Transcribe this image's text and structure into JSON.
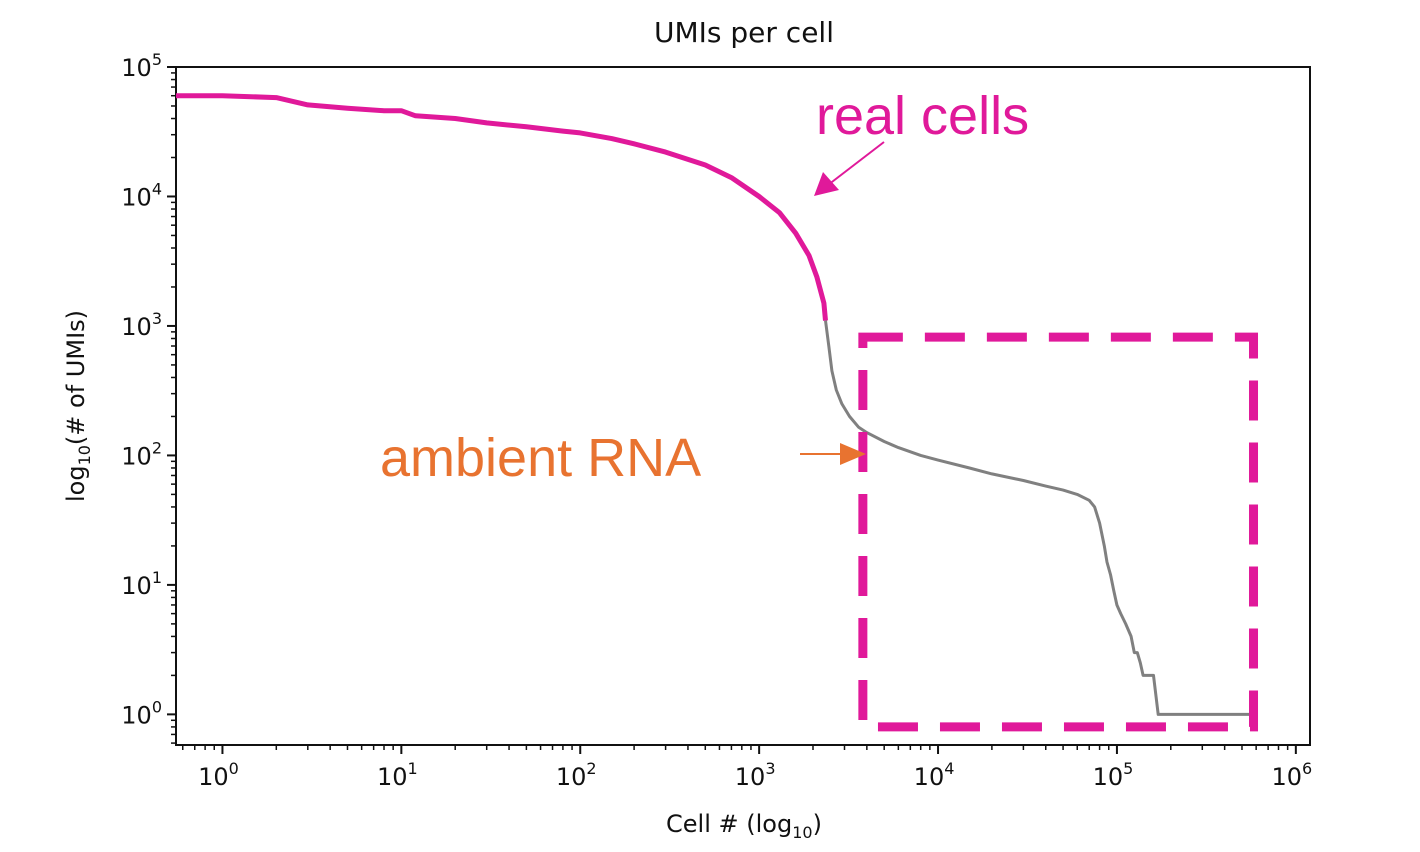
{
  "chart_data": {
    "type": "line",
    "title": "UMIs per cell",
    "xlabel": {
      "prefix": "Cell # (log",
      "sub": "10",
      "suffix": ")"
    },
    "ylabel": {
      "prefix": "log",
      "sub": "10",
      "suffix": "(# of UMIs)"
    },
    "x_scale": "log",
    "y_scale": "log",
    "xlim": [
      0.55,
      1200000
    ],
    "ylim": [
      0.58,
      100000
    ],
    "x_ticks": [
      {
        "base": "10",
        "exp": "0",
        "value": 1
      },
      {
        "base": "10",
        "exp": "1",
        "value": 10
      },
      {
        "base": "10",
        "exp": "2",
        "value": 100
      },
      {
        "base": "10",
        "exp": "3",
        "value": 1000
      },
      {
        "base": "10",
        "exp": "4",
        "value": 10000
      },
      {
        "base": "10",
        "exp": "5",
        "value": 100000
      },
      {
        "base": "10",
        "exp": "6",
        "value": 1000000
      }
    ],
    "y_ticks": [
      {
        "base": "10",
        "exp": "0",
        "value": 1
      },
      {
        "base": "10",
        "exp": "1",
        "value": 10
      },
      {
        "base": "10",
        "exp": "2",
        "value": 100
      },
      {
        "base": "10",
        "exp": "3",
        "value": 1000
      },
      {
        "base": "10",
        "exp": "4",
        "value": 10000
      },
      {
        "base": "10",
        "exp": "5",
        "value": 100000
      }
    ],
    "grid": false,
    "series": [
      {
        "color": "#e0199a",
        "x": [
          0.55,
          1,
          2,
          3,
          5,
          8,
          10,
          12,
          20,
          30,
          50,
          80,
          100,
          150,
          200,
          300,
          500,
          700,
          1000,
          1300,
          1600,
          1900,
          2100,
          2300,
          2350
        ],
        "y": [
          60000,
          60000,
          58000,
          51000,
          48000,
          46000,
          46000,
          42000,
          40000,
          37000,
          34500,
          32000,
          31000,
          28000,
          25500,
          22000,
          17500,
          14000,
          10000,
          7500,
          5200,
          3500,
          2400,
          1500,
          1100
        ]
      },
      {
        "color": "#808080",
        "x": [
          2350,
          2450,
          2550,
          2700,
          2900,
          3200,
          3600,
          4000,
          5000,
          6000,
          8000,
          10000,
          15000,
          20000,
          30000,
          40000,
          50000,
          60000,
          70000,
          75000,
          80000,
          85000,
          88000,
          92000,
          96000,
          100000,
          105000,
          112000,
          120000,
          125000,
          130000,
          135000,
          140000,
          150000,
          160000,
          170000,
          200000,
          300000,
          400000,
          560000
        ],
        "y": [
          1100,
          700,
          450,
          320,
          250,
          200,
          165,
          150,
          128,
          115,
          100,
          92,
          80,
          72,
          64,
          58,
          54,
          50,
          45,
          40,
          30,
          20,
          15,
          12,
          9,
          7,
          6,
          5,
          4,
          3,
          3,
          2.5,
          2,
          2,
          2,
          1,
          1,
          1,
          1,
          1
        ]
      }
    ],
    "annotations": [
      {
        "text": "real cells",
        "color": "#e0199a",
        "arrow_from": [
          1100000,
          40000
        ],
        "arrow_to": [
          1000000,
          30000
        ]
      },
      {
        "text": "ambient RNA",
        "color": "#e87330"
      }
    ],
    "highlight_box": {
      "x": [
        3800,
        580000
      ],
      "y": [
        0.8,
        820
      ],
      "color": "#e0199a",
      "style": "dashed"
    }
  }
}
